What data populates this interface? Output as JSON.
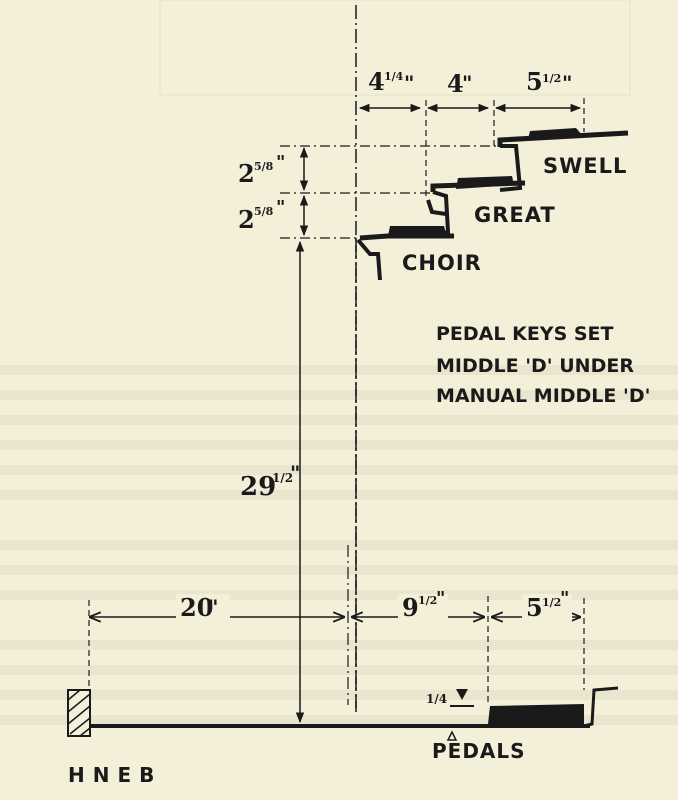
{
  "labels": {
    "swell": "SWELL",
    "great": "GREAT",
    "choir": "CHOIR",
    "pedals": "PEDALS",
    "signature": "HNEB"
  },
  "note": {
    "line1": "PEDAL KEYS SET",
    "line2": "MIDDLE 'D' UNDER",
    "line3": "MANUAL MIDDLE 'D'"
  },
  "dimensions": {
    "top": {
      "first": "4",
      "first_frac": "1/4",
      "second": "4",
      "third": "5",
      "third_frac": "1/2"
    },
    "vertical": {
      "upper": "2",
      "upper_frac": "5/8",
      "lower": "2",
      "lower_frac": "5/8"
    },
    "height": {
      "whole": "29",
      "frac": "1/2"
    },
    "bottom": {
      "first": "20",
      "second": "9",
      "second_frac": "1/2",
      "third": "5",
      "third_frac": "1/2"
    },
    "pedal_gap": {
      "frac": "1/4"
    }
  },
  "colors": {
    "ink": "#1a1a1a",
    "paper": "#f3efd9"
  }
}
